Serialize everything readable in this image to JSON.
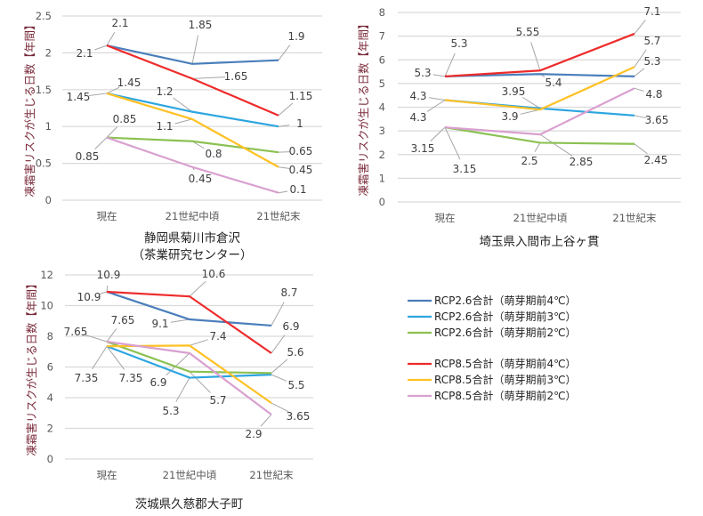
{
  "legend": [
    {
      "name": "RCP2.6合計（萌芽期前4℃）",
      "color": "#4A7EBB"
    },
    {
      "name": "RCP2.6合計（萌芽期前3℃）",
      "color": "#2DA5E0"
    },
    {
      "name": "RCP2.6合計（萌芽期前2℃）",
      "color": "#8CC152"
    },
    {
      "name": "RCP8.5合計（萌芽期前4℃）",
      "color": "#EE2B2B"
    },
    {
      "name": "RCP8.5合計（萌芽期前3℃）",
      "color": "#FFC125"
    },
    {
      "name": "RCP8.5合計（萌芽期前2℃）",
      "color": "#D9A0D0"
    }
  ],
  "chart_data": [
    {
      "type": "line",
      "title": [
        "静岡県菊川市倉沢",
        "（茶業研究センター）"
      ],
      "ylabel": "凍霜害リスクが生じる日数【年間】",
      "categories": [
        "現在",
        "21世紀中頃",
        "21世紀末"
      ],
      "ylim": [
        0,
        2.5
      ],
      "yticks": [
        "0",
        "0.5",
        "1",
        "1.5",
        "2",
        "2.5"
      ],
      "grid": true,
      "series": [
        {
          "name": "RCP2.6合計（萌芽期前4℃）",
          "values": [
            2.1,
            1.85,
            1.9
          ]
        },
        {
          "name": "RCP2.6合計（萌芽期前3℃）",
          "values": [
            1.45,
            1.2,
            1.0
          ]
        },
        {
          "name": "RCP2.6合計（萌芽期前2℃）",
          "values": [
            0.85,
            0.8,
            0.65
          ]
        },
        {
          "name": "RCP8.5合計（萌芽期前4℃）",
          "values": [
            2.1,
            1.65,
            1.15
          ]
        },
        {
          "name": "RCP8.5合計（萌芽期前3℃）",
          "values": [
            1.45,
            1.1,
            0.45
          ]
        },
        {
          "name": "RCP8.5合計（萌芽期前2℃）",
          "values": [
            0.85,
            0.45,
            0.1
          ]
        }
      ]
    },
    {
      "type": "line",
      "title": [
        "埼玉県入間市上谷ヶ貫"
      ],
      "ylabel": "凍霜害リスクが生じる日数【年間】",
      "categories": [
        "現在",
        "21世紀中頃",
        "21世紀末"
      ],
      "ylim": [
        0,
        8
      ],
      "yticks": [
        "0",
        "1",
        "2",
        "3",
        "4",
        "5",
        "6",
        "7",
        "8"
      ],
      "grid": true,
      "series": [
        {
          "name": "RCP2.6合計（萌芽期前4℃）",
          "values": [
            5.3,
            5.4,
            5.3
          ]
        },
        {
          "name": "RCP2.6合計（萌芽期前3℃）",
          "values": [
            4.3,
            3.95,
            3.65
          ]
        },
        {
          "name": "RCP2.6合計（萌芽期前2℃）",
          "values": [
            3.15,
            2.5,
            2.45
          ]
        },
        {
          "name": "RCP8.5合計（萌芽期前4℃）",
          "values": [
            5.3,
            5.55,
            7.1
          ]
        },
        {
          "name": "RCP8.5合計（萌芽期前3℃）",
          "values": [
            4.3,
            3.9,
            5.7
          ]
        },
        {
          "name": "RCP8.5合計（萌芽期前2℃）",
          "values": [
            3.15,
            2.85,
            4.8
          ]
        }
      ]
    },
    {
      "type": "line",
      "title": [
        "茨城県久慈郡大子町"
      ],
      "ylabel": "凍霜害リスクが生じる日数【年間】",
      "categories": [
        "現在",
        "21世紀中頃",
        "21世紀末"
      ],
      "ylim": [
        0,
        12
      ],
      "yticks": [
        "0",
        "2",
        "4",
        "6",
        "8",
        "10",
        "12"
      ],
      "grid": true,
      "series": [
        {
          "name": "RCP2.6合計（萌芽期前4℃）",
          "values": [
            10.9,
            9.1,
            8.7
          ]
        },
        {
          "name": "RCP2.6合計（萌芽期前3℃）",
          "values": [
            7.35,
            5.3,
            5.5
          ]
        },
        {
          "name": "RCP2.6合計（萌芽期前2℃）",
          "values": [
            7.65,
            5.7,
            5.6
          ]
        },
        {
          "name": "RCP8.5合計（萌芽期前4℃）",
          "values": [
            10.9,
            10.6,
            6.9
          ]
        },
        {
          "name": "RCP8.5合計（萌芽期前3℃）",
          "values": [
            7.35,
            7.4,
            3.65
          ]
        },
        {
          "name": "RCP8.5合計（萌芽期前2℃）",
          "values": [
            7.65,
            6.9,
            2.9
          ]
        }
      ]
    }
  ]
}
